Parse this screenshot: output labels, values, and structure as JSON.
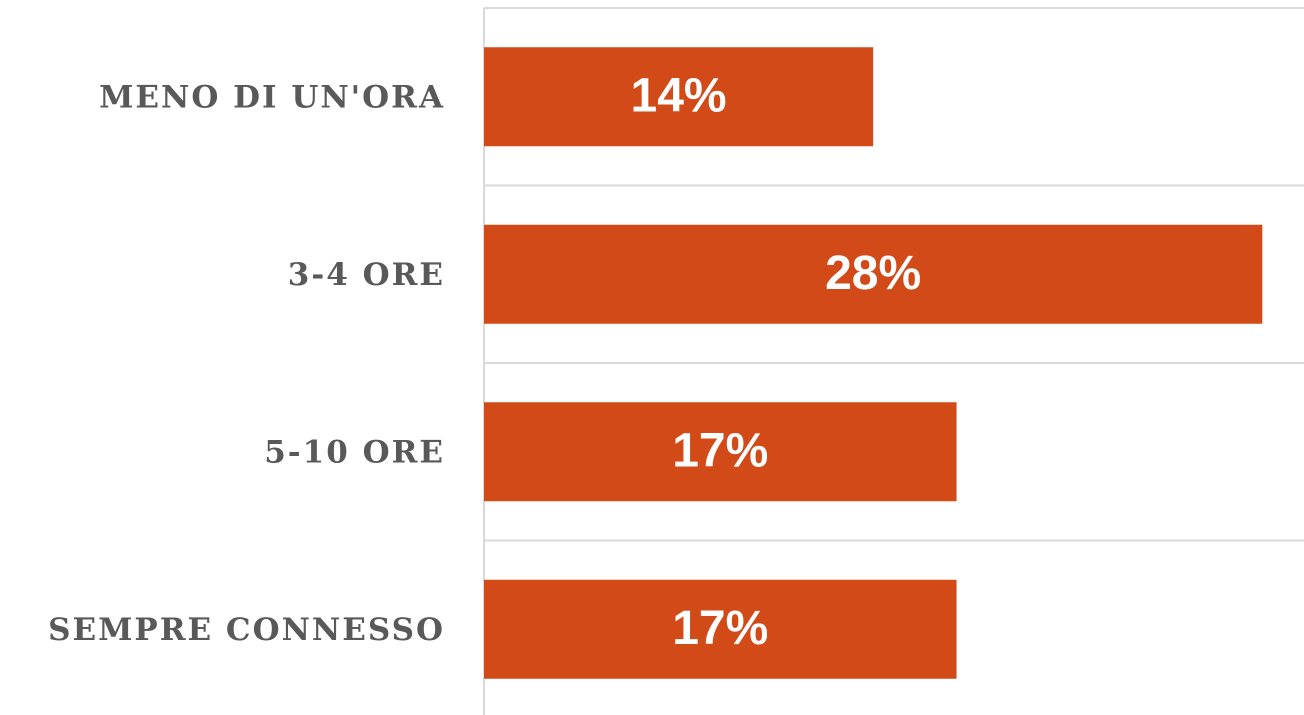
{
  "chart_data": {
    "type": "barh",
    "categories": [
      "MENO DI UN'ORA",
      "3-4 ORE",
      "5-10 ORE",
      "SEMPRE CONNESSO"
    ],
    "values": [
      14,
      28,
      17,
      17
    ],
    "value_labels": [
      "14%",
      "28%",
      "17%",
      "17%"
    ],
    "color": "#d24a17",
    "xlim": [
      0,
      29.5
    ]
  }
}
